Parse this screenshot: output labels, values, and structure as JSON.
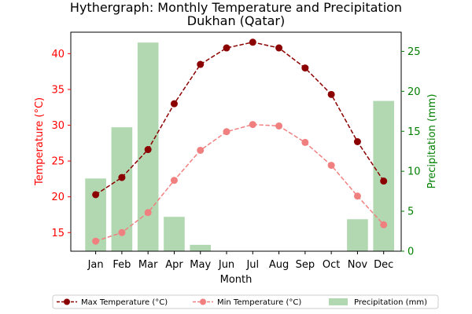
{
  "chart_data": {
    "type": "bar+line",
    "title": "Hythergraph: Monthly Temperature and Precipitation",
    "subtitle": "Dukhan (Qatar)",
    "xlabel": "Month",
    "ylabel_left": "Temperature (°C)",
    "ylabel_right": "Precipitation (mm)",
    "categories": [
      "Jan",
      "Feb",
      "Mar",
      "Apr",
      "May",
      "Jun",
      "Jul",
      "Aug",
      "Sep",
      "Oct",
      "Nov",
      "Dec"
    ],
    "ylim_left": [
      12.4,
      43.0
    ],
    "ylim_right": [
      0,
      27.4
    ],
    "yticks_left": [
      15,
      20,
      25,
      30,
      35,
      40
    ],
    "yticks_right": [
      0,
      5,
      10,
      15,
      20,
      25
    ],
    "series": [
      {
        "name": "Max Temperature (°C)",
        "kind": "line",
        "axis": "left",
        "color": "#8b0000",
        "values": [
          20.3,
          22.7,
          26.6,
          33.0,
          38.5,
          40.8,
          41.6,
          40.8,
          38.0,
          34.3,
          27.7,
          22.2
        ]
      },
      {
        "name": "Min Temperature (°C)",
        "kind": "line",
        "axis": "left",
        "color": "#f08080",
        "values": [
          13.8,
          15.0,
          17.8,
          22.3,
          26.5,
          29.1,
          30.1,
          29.9,
          27.6,
          24.4,
          20.1,
          16.1
        ]
      },
      {
        "name": "Precipitation (mm)",
        "kind": "bar",
        "axis": "right",
        "color": "#b2d8b2",
        "values": [
          9.1,
          15.5,
          26.1,
          4.3,
          0.8,
          0,
          0,
          0,
          0,
          0,
          4.0,
          18.8
        ]
      }
    ],
    "colors": {
      "left_axis": "#ff0000",
      "right_axis": "#008000"
    },
    "grid": false,
    "legend_position": "bottom"
  }
}
